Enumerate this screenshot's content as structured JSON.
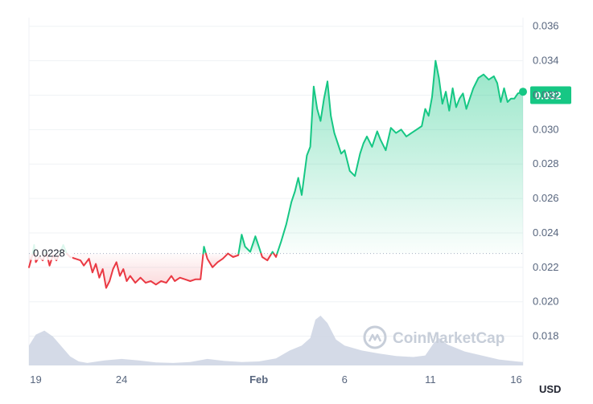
{
  "chart_data": {
    "type": "line",
    "currency_label": "USD",
    "baseline_value": 0.0228,
    "baseline_label": "0.0228",
    "current_price": 0.032,
    "current_price_label": "0.032",
    "watermark": "CoinMarketCap",
    "ylim": [
      0.0163,
      0.0365
    ],
    "xlim": [
      18.6,
      47.4
    ],
    "y_ticks": [
      {
        "value": 0.036,
        "label": "0.036"
      },
      {
        "value": 0.034,
        "label": "0.034"
      },
      {
        "value": 0.032,
        "label": "0.032"
      },
      {
        "value": 0.03,
        "label": "0.030"
      },
      {
        "value": 0.028,
        "label": "0.028"
      },
      {
        "value": 0.026,
        "label": "0.026"
      },
      {
        "value": 0.024,
        "label": "0.024"
      },
      {
        "value": 0.022,
        "label": "0.022"
      },
      {
        "value": 0.02,
        "label": "0.020"
      },
      {
        "value": 0.018,
        "label": "0.018"
      }
    ],
    "x_ticks": [
      {
        "day": 19,
        "label": "19",
        "bold": false
      },
      {
        "day": 24,
        "label": "24",
        "bold": false
      },
      {
        "day": 32,
        "label": "Feb",
        "bold": true
      },
      {
        "day": 37,
        "label": "6",
        "bold": false
      },
      {
        "day": 42,
        "label": "11",
        "bold": false
      },
      {
        "day": 47,
        "label": "16",
        "bold": false
      }
    ],
    "colors": {
      "up": "#16c784",
      "down": "#ea3943",
      "volume": "#cfd6e4",
      "grid": "#eff2f5",
      "baseline": "#a6b0c3",
      "price_tag": "#16c784"
    },
    "price_series": [
      [
        18.6,
        0.022
      ],
      [
        18.8,
        0.0227
      ],
      [
        18.9,
        0.0233
      ],
      [
        19.0,
        0.0223
      ],
      [
        19.2,
        0.0226
      ],
      [
        19.4,
        0.0224
      ],
      [
        19.6,
        0.0229
      ],
      [
        19.8,
        0.0221
      ],
      [
        20.0,
        0.0227
      ],
      [
        20.2,
        0.0224
      ],
      [
        20.4,
        0.0228
      ],
      [
        20.6,
        0.0233
      ],
      [
        20.8,
        0.0228
      ],
      [
        21.0,
        0.0226
      ],
      [
        21.3,
        0.0225
      ],
      [
        21.6,
        0.0224
      ],
      [
        21.8,
        0.0221
      ],
      [
        22.1,
        0.0225
      ],
      [
        22.3,
        0.0217
      ],
      [
        22.5,
        0.0222
      ],
      [
        22.7,
        0.0214
      ],
      [
        22.9,
        0.0219
      ],
      [
        23.1,
        0.0208
      ],
      [
        23.3,
        0.0212
      ],
      [
        23.5,
        0.0219
      ],
      [
        23.7,
        0.0223
      ],
      [
        23.9,
        0.0215
      ],
      [
        24.1,
        0.0219
      ],
      [
        24.3,
        0.0212
      ],
      [
        24.5,
        0.0215
      ],
      [
        24.8,
        0.0211
      ],
      [
        25.1,
        0.0214
      ],
      [
        25.4,
        0.0211
      ],
      [
        25.7,
        0.0212
      ],
      [
        26.0,
        0.021
      ],
      [
        26.3,
        0.0212
      ],
      [
        26.6,
        0.0211
      ],
      [
        26.9,
        0.0215
      ],
      [
        27.1,
        0.0212
      ],
      [
        27.4,
        0.0214
      ],
      [
        27.7,
        0.0213
      ],
      [
        28.0,
        0.0212
      ],
      [
        28.3,
        0.0213
      ],
      [
        28.6,
        0.0213
      ],
      [
        28.8,
        0.0232
      ],
      [
        29.0,
        0.0225
      ],
      [
        29.3,
        0.022
      ],
      [
        29.6,
        0.0223
      ],
      [
        29.9,
        0.0225
      ],
      [
        30.2,
        0.0228
      ],
      [
        30.5,
        0.0226
      ],
      [
        30.8,
        0.0227
      ],
      [
        31.0,
        0.0239
      ],
      [
        31.2,
        0.0232
      ],
      [
        31.5,
        0.0229
      ],
      [
        31.8,
        0.0238
      ],
      [
        32.0,
        0.0232
      ],
      [
        32.2,
        0.0226
      ],
      [
        32.5,
        0.0224
      ],
      [
        32.8,
        0.0229
      ],
      [
        33.0,
        0.0226
      ],
      [
        33.3,
        0.0235
      ],
      [
        33.6,
        0.0245
      ],
      [
        33.9,
        0.0258
      ],
      [
        34.1,
        0.0264
      ],
      [
        34.3,
        0.0272
      ],
      [
        34.5,
        0.0262
      ],
      [
        34.8,
        0.0285
      ],
      [
        35.0,
        0.029
      ],
      [
        35.2,
        0.0325
      ],
      [
        35.4,
        0.0312
      ],
      [
        35.6,
        0.0305
      ],
      [
        35.8,
        0.0318
      ],
      [
        36.0,
        0.0328
      ],
      [
        36.2,
        0.0308
      ],
      [
        36.4,
        0.0298
      ],
      [
        36.6,
        0.0292
      ],
      [
        36.8,
        0.0286
      ],
      [
        37.0,
        0.0288
      ],
      [
        37.3,
        0.0276
      ],
      [
        37.6,
        0.0273
      ],
      [
        37.9,
        0.0286
      ],
      [
        38.1,
        0.0292
      ],
      [
        38.3,
        0.0296
      ],
      [
        38.6,
        0.029
      ],
      [
        38.9,
        0.0299
      ],
      [
        39.1,
        0.0294
      ],
      [
        39.4,
        0.0288
      ],
      [
        39.7,
        0.0301
      ],
      [
        40.0,
        0.0298
      ],
      [
        40.3,
        0.03
      ],
      [
        40.6,
        0.0296
      ],
      [
        40.9,
        0.0298
      ],
      [
        41.2,
        0.03
      ],
      [
        41.5,
        0.0302
      ],
      [
        41.7,
        0.0312
      ],
      [
        41.9,
        0.0308
      ],
      [
        42.1,
        0.0319
      ],
      [
        42.3,
        0.034
      ],
      [
        42.5,
        0.033
      ],
      [
        42.7,
        0.0315
      ],
      [
        42.9,
        0.0322
      ],
      [
        43.1,
        0.0311
      ],
      [
        43.3,
        0.0324
      ],
      [
        43.5,
        0.0313
      ],
      [
        43.7,
        0.0318
      ],
      [
        43.9,
        0.0321
      ],
      [
        44.1,
        0.0312
      ],
      [
        44.3,
        0.0318
      ],
      [
        44.5,
        0.0324
      ],
      [
        44.8,
        0.033
      ],
      [
        45.1,
        0.0332
      ],
      [
        45.4,
        0.0329
      ],
      [
        45.7,
        0.0331
      ],
      [
        45.9,
        0.0327
      ],
      [
        46.1,
        0.0316
      ],
      [
        46.3,
        0.0324
      ],
      [
        46.5,
        0.0316
      ],
      [
        46.7,
        0.0318
      ],
      [
        46.9,
        0.0318
      ],
      [
        47.1,
        0.0321
      ],
      [
        47.4,
        0.0322
      ]
    ],
    "volume_series": [
      [
        18.6,
        0.4
      ],
      [
        19.0,
        0.62
      ],
      [
        19.5,
        0.7
      ],
      [
        20.0,
        0.58
      ],
      [
        20.5,
        0.38
      ],
      [
        21.0,
        0.18
      ],
      [
        21.5,
        0.08
      ],
      [
        22.0,
        0.05
      ],
      [
        23.0,
        0.1
      ],
      [
        24.0,
        0.13
      ],
      [
        25.0,
        0.1
      ],
      [
        26.0,
        0.06
      ],
      [
        27.0,
        0.05
      ],
      [
        28.0,
        0.07
      ],
      [
        29.0,
        0.13
      ],
      [
        30.0,
        0.09
      ],
      [
        31.0,
        0.07
      ],
      [
        32.0,
        0.08
      ],
      [
        33.0,
        0.14
      ],
      [
        33.8,
        0.3
      ],
      [
        34.5,
        0.4
      ],
      [
        35.0,
        0.55
      ],
      [
        35.3,
        0.92
      ],
      [
        35.6,
        1.0
      ],
      [
        36.0,
        0.85
      ],
      [
        36.5,
        0.52
      ],
      [
        37.0,
        0.4
      ],
      [
        38.0,
        0.3
      ],
      [
        39.0,
        0.24
      ],
      [
        40.0,
        0.19
      ],
      [
        41.0,
        0.17
      ],
      [
        41.7,
        0.2
      ],
      [
        42.2,
        0.45
      ],
      [
        42.5,
        0.55
      ],
      [
        43.0,
        0.42
      ],
      [
        44.0,
        0.28
      ],
      [
        45.0,
        0.2
      ],
      [
        46.0,
        0.12
      ],
      [
        47.0,
        0.08
      ],
      [
        47.4,
        0.07
      ]
    ]
  }
}
